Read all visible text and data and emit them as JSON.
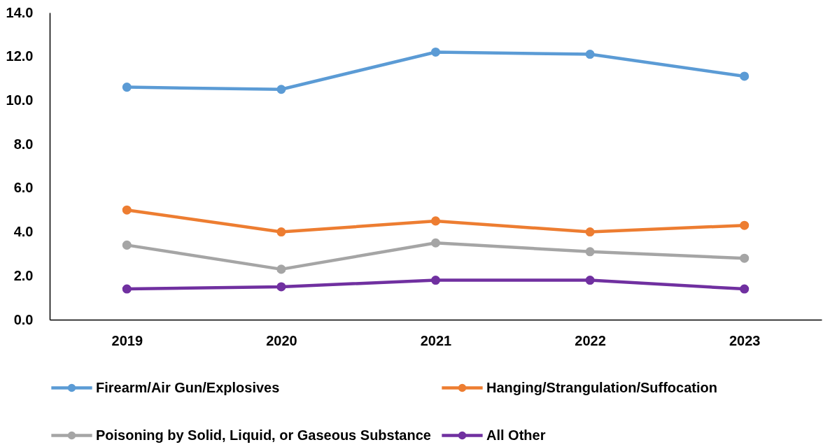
{
  "chart_data": {
    "type": "line",
    "categories": [
      "2019",
      "2020",
      "2021",
      "2022",
      "2023"
    ],
    "series": [
      {
        "name": "Firearm/Air Gun/Explosives",
        "color": "#5b9bd5",
        "values": [
          10.6,
          10.5,
          12.2,
          12.1,
          11.1
        ]
      },
      {
        "name": "Hanging/Strangulation/Suffocation",
        "color": "#ed7d31",
        "values": [
          5.0,
          4.0,
          4.5,
          4.0,
          4.3
        ]
      },
      {
        "name": "Poisoning by Solid, Liquid, or Gaseous Substance",
        "color": "#a5a5a5",
        "values": [
          3.4,
          2.3,
          3.5,
          3.1,
          2.8
        ]
      },
      {
        "name": "All Other",
        "color": "#7030a0",
        "values": [
          1.4,
          1.5,
          1.8,
          1.8,
          1.4
        ]
      }
    ],
    "ylim": [
      0,
      14
    ],
    "yticks": [
      {
        "value": 0,
        "label": "0.0"
      },
      {
        "value": 2,
        "label": "2.0"
      },
      {
        "value": 4,
        "label": "4.0"
      },
      {
        "value": 6,
        "label": "6.0"
      },
      {
        "value": 8,
        "label": "8.0"
      },
      {
        "value": 10,
        "label": "10.0"
      },
      {
        "value": 12,
        "label": "12.0"
      },
      {
        "value": 14,
        "label": "14.0"
      }
    ],
    "legend": "bottom",
    "marker": "circle",
    "line_style": "solid"
  }
}
